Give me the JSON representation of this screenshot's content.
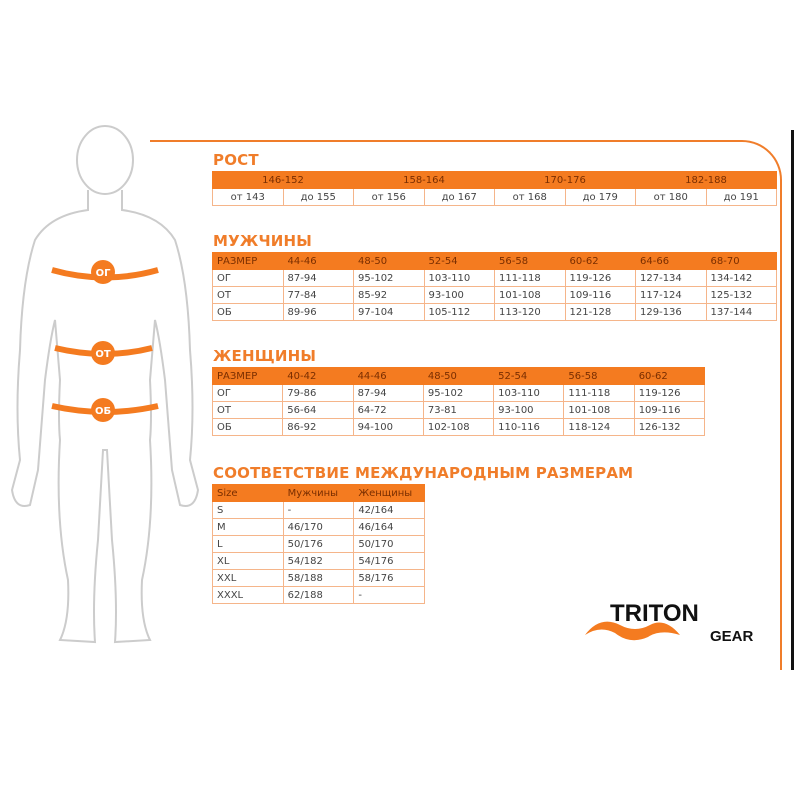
{
  "height": {
    "title": "РОСТ",
    "ranges": [
      "146-152",
      "158-164",
      "170-176",
      "182-188"
    ],
    "bounds": [
      "от 143",
      "до 155",
      "от 156",
      "до 167",
      "от 168",
      "до 179",
      "от 180",
      "до 191"
    ]
  },
  "men": {
    "title": "МУЖЧИНЫ",
    "header": [
      "РАЗМЕР",
      "44-46",
      "48-50",
      "52-54",
      "56-58",
      "60-62",
      "64-66",
      "68-70"
    ],
    "rows": [
      [
        "ОГ",
        "87-94",
        "95-102",
        "103-110",
        "111-118",
        "119-126",
        "127-134",
        "134-142"
      ],
      [
        "ОТ",
        "77-84",
        "85-92",
        "93-100",
        "101-108",
        "109-116",
        "117-124",
        "125-132"
      ],
      [
        "ОБ",
        "89-96",
        "97-104",
        "105-112",
        "113-120",
        "121-128",
        "129-136",
        "137-144"
      ]
    ]
  },
  "women": {
    "title": "ЖЕНЩИНЫ",
    "header": [
      "РАЗМЕР",
      "40-42",
      "44-46",
      "48-50",
      "52-54",
      "56-58",
      "60-62"
    ],
    "rows": [
      [
        "ОГ",
        "79-86",
        "87-94",
        "95-102",
        "103-110",
        "111-118",
        "119-126"
      ],
      [
        "ОТ",
        "56-64",
        "64-72",
        "73-81",
        "93-100",
        "101-108",
        "109-116"
      ],
      [
        "ОБ",
        "86-92",
        "94-100",
        "102-108",
        "110-116",
        "118-124",
        "126-132"
      ]
    ]
  },
  "intl": {
    "title": "СООТВЕТСТВИЕ МЕЖДУНАРОДНЫМ РАЗМЕРАМ",
    "header": [
      "Size",
      "Мужчины",
      "Женщины"
    ],
    "rows": [
      [
        "S",
        "-",
        "42/164"
      ],
      [
        "M",
        "46/170",
        "46/164"
      ],
      [
        "L",
        "50/176",
        "50/170"
      ],
      [
        "XL",
        "54/182",
        "54/176"
      ],
      [
        "XXL",
        "58/188",
        "58/176"
      ],
      [
        "XXXL",
        "62/188",
        "-"
      ]
    ]
  },
  "figure": {
    "labels": [
      "ОГ",
      "ОТ",
      "ОБ"
    ]
  },
  "logo": {
    "line1": "TRITON",
    "line2": "GEAR"
  },
  "colors": {
    "accent": "#f47b20",
    "border": "#f5b58a"
  }
}
